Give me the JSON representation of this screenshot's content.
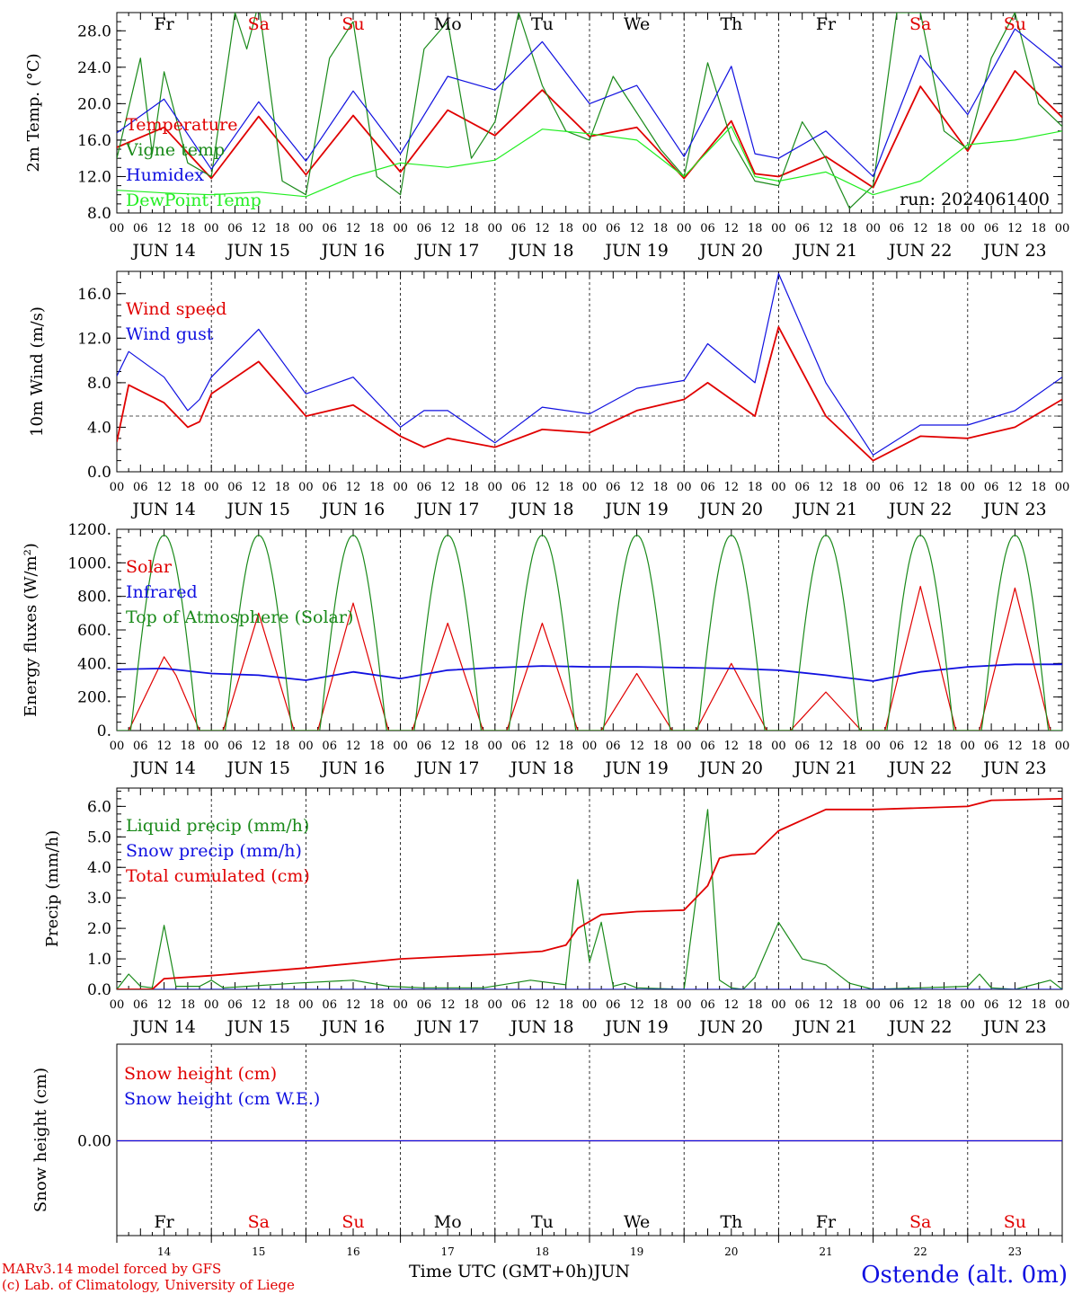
{
  "meteogram": {
    "run_label": "run: 2024061400",
    "xlabel": "Time UTC (GMT+0h)",
    "month_label": "JUN",
    "station_label": "Ostende (alt. 0m)",
    "credit_line1": "MARv3.14 model forced by GFS",
    "credit_line2": "(c) Lab. of Climatology, University of Liege",
    "day_abbrevs": [
      "Fr",
      "Sa",
      "Su",
      "Mo",
      "Tu",
      "We",
      "Th",
      "Fr",
      "Sa",
      "Su"
    ],
    "day_colors": [
      "#000000",
      "#e00000",
      "#e00000",
      "#000000",
      "#000000",
      "#000000",
      "#000000",
      "#000000",
      "#e00000",
      "#e00000"
    ],
    "date_labels": [
      "JUN 14",
      "JUN 15",
      "JUN 16",
      "JUN 17",
      "JUN 18",
      "JUN 19",
      "JUN 20",
      "JUN 21",
      "JUN 22",
      "JUN 23"
    ],
    "day_numbers": [
      "14",
      "15",
      "16",
      "17",
      "18",
      "19",
      "20",
      "21",
      "22",
      "23"
    ],
    "hour_ticks": [
      "00",
      "06",
      "12",
      "18"
    ]
  },
  "chart_data": [
    {
      "type": "line",
      "ylabel": "2m Temp. (°C)",
      "ylim": [
        8,
        30
      ],
      "yticks": [
        "8.0",
        "12.0",
        "16.0",
        "20.0",
        "24.0",
        "28.0"
      ],
      "x_unit": "hours since 2024-06-14 00 UTC",
      "series": [
        {
          "name": "Temperature",
          "color": "#e00000",
          "x": [
            0,
            12,
            24,
            36,
            48,
            60,
            72,
            84,
            96,
            108,
            120,
            132,
            144,
            156,
            162,
            168,
            180,
            192,
            204,
            216,
            228,
            240
          ],
          "values": [
            15.2,
            17.4,
            11.8,
            18.6,
            12.2,
            18.7,
            12.5,
            19.3,
            16.5,
            21.5,
            16.4,
            17.4,
            11.8,
            18.1,
            12.3,
            12.0,
            14.2,
            10.8,
            21.9,
            14.8,
            23.6,
            18.5
          ]
        },
        {
          "name": "Vigne temp",
          "color": "#1a8a1a",
          "x": [
            0,
            6,
            9,
            12,
            18,
            24,
            30,
            33,
            36,
            42,
            48,
            54,
            60,
            66,
            72,
            78,
            84,
            90,
            96,
            102,
            108,
            114,
            120,
            126,
            132,
            138,
            144,
            150,
            156,
            162,
            168,
            174,
            180,
            186,
            192,
            198,
            204,
            210,
            216,
            222,
            228,
            234,
            240
          ],
          "values": [
            14.0,
            25.0,
            14.5,
            23.5,
            13.5,
            12.0,
            30.0,
            26.0,
            31.0,
            11.5,
            10.0,
            25.0,
            29.0,
            12.0,
            10.0,
            26.0,
            29.0,
            14.0,
            18.0,
            30.0,
            22.0,
            17.0,
            16.0,
            23.0,
            19.0,
            15.0,
            12.0,
            24.5,
            16.0,
            11.5,
            11.0,
            18.0,
            14.0,
            8.5,
            11.0,
            30.0,
            30.0,
            17.0,
            15.0,
            25.0,
            30.0,
            20.0,
            17.5
          ]
        },
        {
          "name": "Humidex",
          "color": "#1010e0",
          "x": [
            0,
            12,
            24,
            36,
            48,
            60,
            72,
            84,
            96,
            108,
            120,
            132,
            144,
            156,
            162,
            168,
            180,
            192,
            204,
            216,
            228,
            240
          ],
          "values": [
            16.8,
            20.5,
            12.8,
            20.2,
            13.7,
            21.4,
            14.5,
            23.0,
            21.5,
            26.8,
            20.0,
            22.0,
            14.2,
            24.1,
            14.5,
            14.0,
            17.0,
            12.0,
            25.3,
            18.8,
            28.2,
            24.0
          ]
        },
        {
          "name": "DewPoint Temp",
          "color": "#22ee22",
          "x": [
            0,
            12,
            24,
            36,
            48,
            60,
            72,
            84,
            96,
            108,
            120,
            132,
            144,
            156,
            162,
            168,
            180,
            192,
            204,
            216,
            228,
            240
          ],
          "values": [
            10.5,
            10.2,
            10.0,
            10.3,
            9.8,
            12.0,
            13.5,
            13.0,
            13.8,
            17.2,
            16.7,
            16.0,
            12.0,
            17.5,
            12.0,
            11.5,
            12.5,
            10.0,
            11.5,
            15.5,
            16.0,
            17.0
          ]
        }
      ]
    },
    {
      "type": "line",
      "ylabel": "10m Wind (m/s)",
      "ylim": [
        0,
        18
      ],
      "yticks": [
        "0.0",
        "4.0",
        "8.0",
        "12.0",
        "16.0"
      ],
      "reference_line": 5.0,
      "series": [
        {
          "name": "Wind speed",
          "color": "#e00000",
          "x": [
            0,
            3,
            12,
            18,
            21,
            24,
            36,
            48,
            60,
            72,
            78,
            84,
            96,
            108,
            120,
            132,
            144,
            150,
            162,
            168,
            180,
            192,
            204,
            216,
            228,
            240
          ],
          "values": [
            2.7,
            7.8,
            6.2,
            4.0,
            4.5,
            7.0,
            9.9,
            5.0,
            6.0,
            3.2,
            2.2,
            3.0,
            2.2,
            3.8,
            3.5,
            5.5,
            6.5,
            8.0,
            5.0,
            13.0,
            5.0,
            1.0,
            3.2,
            3.0,
            4.0,
            6.5
          ]
        },
        {
          "name": "Wind gust",
          "color": "#1010e0",
          "x": [
            0,
            3,
            12,
            18,
            21,
            24,
            36,
            48,
            60,
            72,
            78,
            84,
            96,
            108,
            120,
            132,
            144,
            150,
            162,
            168,
            180,
            192,
            204,
            216,
            228,
            240
          ],
          "values": [
            8.6,
            10.8,
            8.5,
            5.5,
            6.5,
            8.5,
            12.8,
            7.0,
            8.5,
            4.0,
            5.5,
            5.5,
            2.6,
            5.8,
            5.2,
            7.5,
            8.2,
            11.5,
            8.0,
            17.8,
            8.0,
            1.5,
            4.2,
            4.2,
            5.5,
            8.5
          ]
        }
      ]
    },
    {
      "type": "line",
      "ylabel": "Energy fluxes (W/m²)",
      "ylim": [
        0,
        1200
      ],
      "yticks": [
        "0.",
        "200.",
        "400.",
        "600.",
        "800.",
        "1000.",
        "1200."
      ],
      "series": [
        {
          "name": "Solar",
          "color": "#e00000",
          "x": [
            3,
            12,
            15,
            21,
            27,
            36,
            45,
            51,
            60,
            69,
            75,
            84,
            93,
            99,
            108,
            117,
            123,
            132,
            141,
            147,
            156,
            165,
            171,
            180,
            189,
            195,
            204,
            213,
            219,
            228,
            237
          ],
          "values": [
            0,
            440,
            330,
            0,
            0,
            700,
            0,
            0,
            760,
            0,
            0,
            640,
            0,
            0,
            640,
            0,
            0,
            340,
            0,
            0,
            400,
            0,
            0,
            230,
            0,
            0,
            860,
            0,
            0,
            850,
            0
          ]
        },
        {
          "name": "Infrared",
          "color": "#1010e0",
          "x": [
            0,
            12,
            24,
            36,
            48,
            60,
            72,
            84,
            96,
            108,
            120,
            132,
            144,
            156,
            168,
            180,
            192,
            204,
            216,
            228,
            240
          ],
          "values": [
            365,
            370,
            340,
            330,
            300,
            350,
            310,
            360,
            375,
            385,
            380,
            380,
            375,
            370,
            360,
            330,
            295,
            350,
            380,
            395,
            395
          ]
        },
        {
          "name": "Top of Atmosphere (Solar)",
          "color": "#1a8a1a",
          "daily_peak": 1165,
          "sunrise_hour": 3.6,
          "sunset_hour": 20.4
        }
      ]
    },
    {
      "type": "line",
      "ylabel": "Precip (mm/h)",
      "ylim": [
        0,
        6.6
      ],
      "yticks": [
        "0.0",
        "1.0",
        "2.0",
        "3.0",
        "4.0",
        "5.0",
        "6.0"
      ],
      "series": [
        {
          "name": "Liquid precip (mm/h)",
          "color": "#1a8a1a",
          "x": [
            0,
            3,
            6,
            9,
            12,
            15,
            21,
            24,
            27,
            33,
            45,
            60,
            69,
            78,
            93,
            105,
            114,
            117,
            120,
            123,
            126,
            129,
            132,
            144,
            150,
            153,
            156,
            159,
            162,
            168,
            174,
            180,
            186,
            192,
            204,
            216,
            219,
            222,
            228,
            237,
            240
          ],
          "values": [
            0,
            0.5,
            0.1,
            0.05,
            2.1,
            0.1,
            0.1,
            0.3,
            0.05,
            0.1,
            0.2,
            0.3,
            0.1,
            0.05,
            0.05,
            0.3,
            0.15,
            3.6,
            0.9,
            2.2,
            0.1,
            0.2,
            0.05,
            0,
            5.9,
            0.3,
            0.05,
            0,
            0.4,
            2.2,
            1.0,
            0.8,
            0.2,
            0,
            0.05,
            0.1,
            0.5,
            0.05,
            0,
            0.3,
            0
          ]
        },
        {
          "name": "Snow precip (mm/h)",
          "color": "#1010e0",
          "x": [
            0,
            240
          ],
          "values": [
            0,
            0
          ]
        },
        {
          "name": "Total cumulated (cm)",
          "color": "#e00000",
          "x": [
            0,
            9,
            12,
            24,
            48,
            72,
            96,
            108,
            114,
            117,
            123,
            132,
            144,
            150,
            153,
            156,
            162,
            168,
            180,
            192,
            216,
            222,
            240
          ],
          "values": [
            0,
            0,
            0.35,
            0.45,
            0.7,
            1.0,
            1.15,
            1.25,
            1.45,
            2.0,
            2.45,
            2.55,
            2.6,
            3.4,
            4.3,
            4.4,
            4.45,
            5.2,
            5.9,
            5.9,
            6.0,
            6.2,
            6.25
          ]
        }
      ]
    },
    {
      "type": "line",
      "ylabel": "Snow height (cm)",
      "yticks": [
        "0.00"
      ],
      "series": [
        {
          "name": "Snow height (cm)",
          "color": "#e00000",
          "x": [
            0,
            240
          ],
          "values": [
            0,
            0
          ]
        },
        {
          "name": "Snow height (cm W.E.)",
          "color": "#1010e0",
          "x": [
            0,
            240
          ],
          "values": [
            0,
            0
          ]
        }
      ]
    }
  ]
}
